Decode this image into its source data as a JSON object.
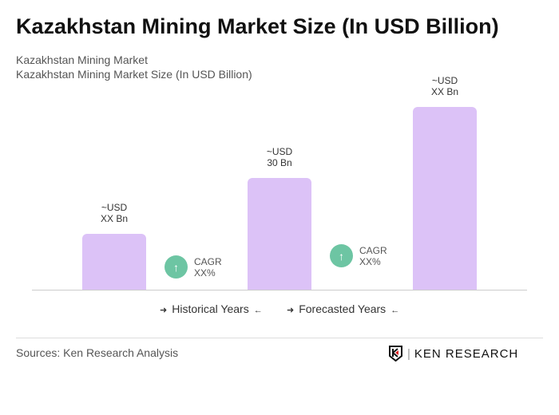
{
  "title": "Kazakhstan Mining Market Size (In USD Billion)",
  "subtitle1": "Kazakhstan Mining Market",
  "subtitle2": "Kazakhstan Mining Market Size (In USD Billion)",
  "chart_data": {
    "type": "bar",
    "values": [
      15,
      30,
      49
    ],
    "data_labels": [
      [
        "~USD",
        "XX Bn"
      ],
      [
        "~USD",
        "30 Bn"
      ],
      [
        "~USD",
        "XX Bn"
      ]
    ],
    "bar_color": "#dcc2f7",
    "cagr": [
      {
        "label": "CAGR",
        "value": "XX%"
      },
      {
        "label": "CAGR",
        "value": "XX%"
      }
    ],
    "cagr_color": "#6dc5a3",
    "legend": [
      "Historical Years",
      "Forecasted Years"
    ]
  },
  "sources": "Sources: Ken Research Analysis",
  "logo_text": "KEN RESEARCH"
}
